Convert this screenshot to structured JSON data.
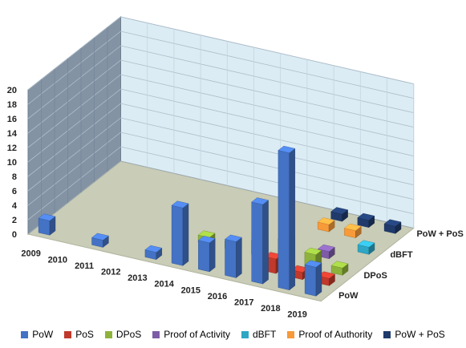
{
  "chart_data": {
    "type": "bar",
    "subtype": "3d-column",
    "title": "",
    "xlabel": "",
    "ylabel": "",
    "ylim": [
      0,
      20
    ],
    "yticks": [
      "0",
      "2",
      "4",
      "6",
      "8",
      "10",
      "12",
      "14",
      "16",
      "18",
      "20"
    ],
    "grid": true,
    "legend_position": "bottom",
    "categories": [
      "2009",
      "2010",
      "2011",
      "2012",
      "2013",
      "2014",
      "2015",
      "2016",
      "2017",
      "2018",
      "2019"
    ],
    "depth_labels": [
      "PoW",
      "DPoS",
      "dBFT",
      "PoW + PoS"
    ],
    "series": [
      {
        "name": "PoW",
        "color": "#4472C4",
        "values": [
          2,
          0,
          1,
          0,
          1,
          8,
          4,
          5,
          11,
          19,
          4
        ]
      },
      {
        "name": "PoS",
        "color": "#C0392B",
        "values": [
          0,
          0,
          0,
          0,
          0,
          0,
          0,
          0,
          2,
          1,
          1
        ]
      },
      {
        "name": "DPoS",
        "color": "#8DB33B",
        "values": [
          0,
          0,
          0,
          0,
          0,
          1,
          1,
          2,
          3,
          2,
          1
        ]
      },
      {
        "name": "Proof of Activity",
        "color": "#7D5BA6",
        "values": [
          0,
          0,
          0,
          0,
          0,
          0,
          0,
          0,
          0,
          1,
          0
        ]
      },
      {
        "name": "dBFT",
        "color": "#2EA6C4",
        "values": [
          0,
          0,
          0,
          0,
          0,
          0,
          0,
          0,
          0,
          0,
          1
        ]
      },
      {
        "name": "Proof of Authority",
        "color": "#F79A3A",
        "values": [
          0,
          0,
          0,
          0,
          0,
          0,
          0,
          0,
          1,
          1,
          0
        ]
      },
      {
        "name": "PoW + PoS",
        "color": "#1F3A6B",
        "values": [
          0,
          0,
          0,
          0,
          0,
          0,
          0,
          0,
          1,
          1,
          1
        ]
      }
    ]
  }
}
